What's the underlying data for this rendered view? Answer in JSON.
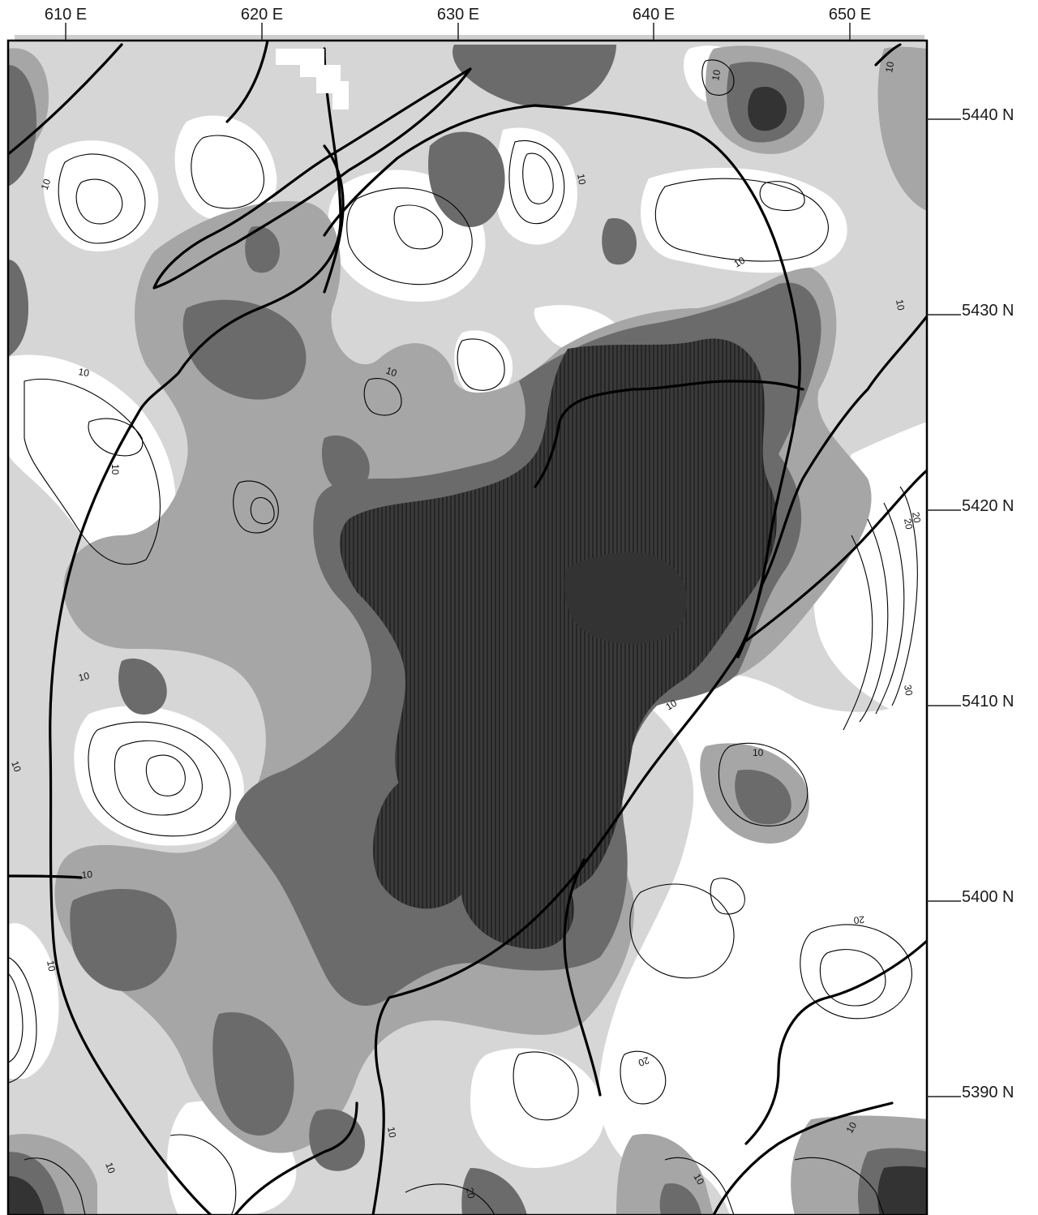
{
  "map": {
    "x_axis": {
      "labels": [
        "610 E",
        "620 E",
        "630 E",
        "640 E",
        "650 E"
      ]
    },
    "y_axis": {
      "labels": [
        "5440 N",
        "5430 N",
        "5420 N",
        "5410 N",
        "5400 N",
        "5390 N"
      ]
    },
    "contour_labels": [
      "10",
      "10",
      "10",
      "10",
      "10",
      "10",
      "10",
      "10",
      "10",
      "20",
      "20",
      "30",
      "10",
      "10",
      "10",
      "10",
      "10",
      "20",
      "20",
      "10",
      "10",
      "10",
      "20",
      "10",
      "10"
    ],
    "shading": {
      "lightest": "#ffffff",
      "light": "#dcdcdc",
      "medium": "#adadad",
      "dark": "#6e6e6e",
      "darkest": "#333333"
    }
  }
}
